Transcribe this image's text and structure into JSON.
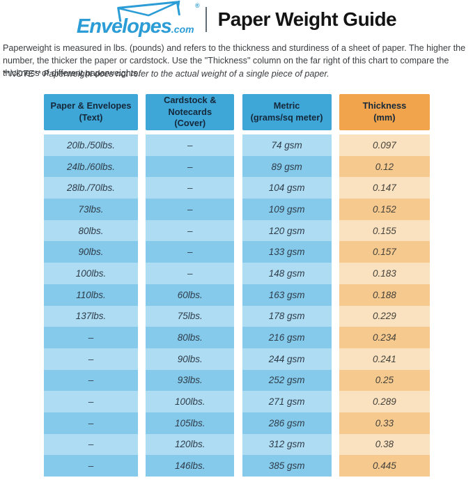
{
  "brand": {
    "logo_text": "Envelopes",
    "logo_suffix": ".com",
    "registered_mark": "®",
    "logo_color": "#2b9cd6"
  },
  "header": {
    "title": "Paper Weight Guide"
  },
  "intro": {
    "paragraph": "Paperweight is measured in lbs. (pounds) and refers to the thickness and sturdiness of a sheet of paper. The higher the number, the thicker the paper or cardstock. Use the \"Thickness\" column on the far right of this chart to compare the thickness of different paperweights.",
    "note": "**NOTE** Paperweight does not refer to the actual weight of a single piece of paper."
  },
  "colors": {
    "header_blue": "#3fa6d8",
    "header_orange": "#f2a44c",
    "row_blue_light": "#aedcf3",
    "row_blue_dark": "#85caeb",
    "row_orange_light": "#fae2c1",
    "row_orange_dark": "#f6c98f"
  },
  "chart_data": {
    "type": "table",
    "title": "Paper Weight Guide",
    "columns": [
      {
        "label": "Paper & Envelopes",
        "sub": "(Text)"
      },
      {
        "label": "Cardstock & Notecards",
        "sub": "(Cover)"
      },
      {
        "label": "Metric",
        "sub": "(grams/sq meter)"
      },
      {
        "label": "Thickness",
        "sub": "(mm)"
      }
    ],
    "rows": [
      [
        "20lb./50lbs.",
        "–",
        "74 gsm",
        "0.097"
      ],
      [
        "24lb./60lbs.",
        "–",
        "89 gsm",
        "0.12"
      ],
      [
        "28lb./70lbs.",
        "–",
        "104 gsm",
        "0.147"
      ],
      [
        "73lbs.",
        "–",
        "109 gsm",
        "0.152"
      ],
      [
        "80lbs.",
        "–",
        "120 gsm",
        "0.155"
      ],
      [
        "90lbs.",
        "–",
        "133 gsm",
        "0.157"
      ],
      [
        "100lbs.",
        "–",
        "148 gsm",
        "0.183"
      ],
      [
        "110lbs.",
        "60lbs.",
        "163 gsm",
        "0.188"
      ],
      [
        "137lbs.",
        "75lbs.",
        "178 gsm",
        "0.229"
      ],
      [
        "–",
        "80lbs.",
        "216 gsm",
        "0.234"
      ],
      [
        "–",
        "90lbs.",
        "244 gsm",
        "0.241"
      ],
      [
        "–",
        "93lbs.",
        "252 gsm",
        "0.25"
      ],
      [
        "–",
        "100lbs.",
        "271 gsm",
        "0.289"
      ],
      [
        "–",
        "105lbs.",
        "286 gsm",
        "0.33"
      ],
      [
        "–",
        "120lbs.",
        "312 gsm",
        "0.38"
      ],
      [
        "–",
        "146lbs.",
        "385 gsm",
        "0.445"
      ]
    ]
  }
}
